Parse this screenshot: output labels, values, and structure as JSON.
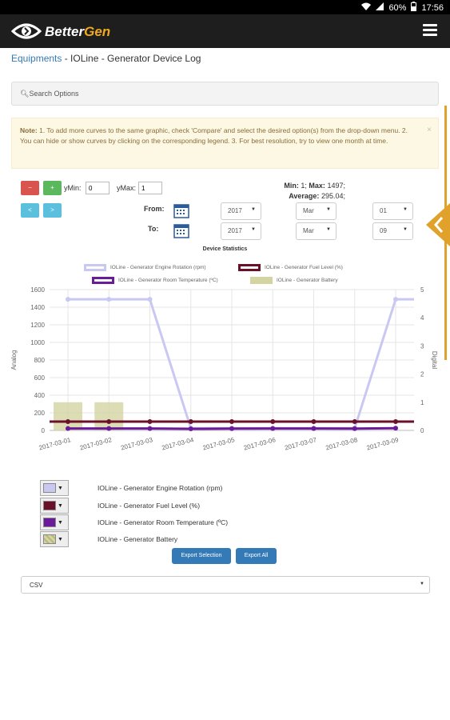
{
  "status_bar": {
    "battery": "60%",
    "time": "17:56"
  },
  "app": {
    "brand_a": "Better",
    "brand_b": "Gen"
  },
  "breadcrumb": {
    "link": "Equipments",
    "rest": " - IOLine - Generator Device Log"
  },
  "search_options": {
    "label": "Search Options"
  },
  "note": {
    "bold": "Note:",
    "text": " 1. To add more curves to the same graphic, check 'Compare' and select the desired option(s) from the drop-down menu. 2. You can hide or show curves by clicking on the corresponding legend. 3. For best resolution, try to view one month at time.",
    "close": "×"
  },
  "controls": {
    "ymin_label": "yMin:",
    "ymin_value": "0",
    "ymax_label": "yMax:",
    "ymax_value": "1",
    "zoom_out": "🔍",
    "zoom_in": "🔍",
    "prev": "<",
    "next": ">",
    "from_label": "From:",
    "to_label": "To:",
    "from": {
      "year": "2017",
      "month": "Mar",
      "day": "01"
    },
    "to": {
      "year": "2017",
      "month": "Mar",
      "day": "09"
    }
  },
  "stats": {
    "min_label": "Min:",
    "min": "1",
    "max_label": "Max:",
    "max": "1497",
    "avg_label": "Average:",
    "avg": "295.04"
  },
  "chart_title": "Device Statistics",
  "chart_data": {
    "type": "line",
    "title": "Device Statistics",
    "ylabel": "Analog",
    "y2label": "Digital",
    "ylim": [
      0,
      1600
    ],
    "y2lim": [
      0,
      5
    ],
    "yticks": [
      0,
      200,
      400,
      600,
      800,
      1000,
      1200,
      1400,
      1600
    ],
    "y2ticks": [
      0,
      1,
      2,
      3,
      4,
      5
    ],
    "categories": [
      "2017-03-01",
      "2017-03-02",
      "2017-03-03",
      "2017-03-04",
      "2017-03-05",
      "2017-03-06",
      "2017-03-07",
      "2017-03-08",
      "2017-03-09"
    ],
    "x_tick_labels": [
      "2017-03-01",
      "2017-03-02",
      "2017-03-03",
      "2017-03-04",
      "2017-03-05",
      "2017-03-06",
      "2017-03-07",
      "2017-03-08",
      "2017-03-09"
    ],
    "series": [
      {
        "name": "IOLine - Generator Engine Rotation (rpm)",
        "type": "line",
        "axis": "left",
        "color": "#c8c8f2",
        "values": [
          1490,
          1490,
          1490,
          25,
          25,
          25,
          25,
          25,
          1490
        ]
      },
      {
        "name": "IOLine - Generator Fuel Level (%)",
        "type": "line",
        "axis": "left",
        "color": "#6b1029",
        "values": [
          100,
          100,
          100,
          100,
          100,
          100,
          100,
          100,
          100
        ]
      },
      {
        "name": "IOLine - Generator Room Temperature (ºC)",
        "type": "line",
        "axis": "left",
        "color": "#6a1b9a",
        "values": [
          22,
          22,
          22,
          18,
          20,
          22,
          22,
          20,
          25
        ]
      },
      {
        "name": "IOLine - Generator Battery",
        "type": "bar",
        "axis": "right",
        "color": "#d4d4a2",
        "values": [
          1,
          1,
          0,
          0,
          0,
          0,
          0,
          0,
          0
        ]
      }
    ],
    "legend_placement": "top",
    "grid": true
  },
  "series_list": [
    {
      "label": "IOLine - Generator Engine Rotation (rpm)",
      "color": "#c8c8f2"
    },
    {
      "label": "IOLine - Generator Fuel Level (%)",
      "color": "#6b1029"
    },
    {
      "label": "IOLine - Generator Room Temperature (ºC)",
      "color": "#6a1b9a"
    },
    {
      "label": "IOLine - Generator Battery",
      "color": "#d4d4a2"
    }
  ],
  "export": {
    "selection": "Export Selection",
    "all": "Export All"
  },
  "format": {
    "value": "CSV"
  }
}
